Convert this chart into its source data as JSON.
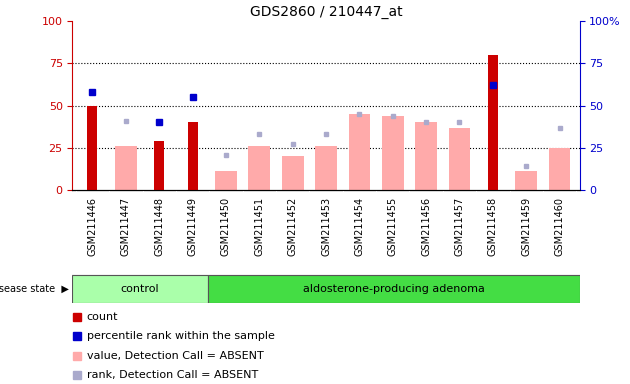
{
  "title": "GDS2860 / 210447_at",
  "samples": [
    "GSM211446",
    "GSM211447",
    "GSM211448",
    "GSM211449",
    "GSM211450",
    "GSM211451",
    "GSM211452",
    "GSM211453",
    "GSM211454",
    "GSM211455",
    "GSM211456",
    "GSM211457",
    "GSM211458",
    "GSM211459",
    "GSM211460"
  ],
  "count": [
    50,
    0,
    29,
    40,
    0,
    0,
    0,
    0,
    0,
    0,
    0,
    0,
    80,
    0,
    0
  ],
  "percentile_rank": [
    58,
    0,
    40,
    55,
    0,
    0,
    0,
    0,
    0,
    0,
    0,
    0,
    62,
    0,
    0
  ],
  "value_absent": [
    0,
    26,
    0,
    0,
    11,
    26,
    20,
    26,
    45,
    44,
    40,
    37,
    0,
    11,
    25
  ],
  "rank_absent": [
    0,
    41,
    0,
    0,
    21,
    33,
    27,
    33,
    45,
    44,
    40,
    40,
    0,
    14,
    37
  ],
  "control_count": 4,
  "adenoma_count": 11,
  "group_labels": [
    "control",
    "aldosterone-producing adenoma"
  ],
  "ylim": [
    0,
    100
  ],
  "bar_color_count": "#cc0000",
  "bar_color_value_absent": "#ffaaaa",
  "dot_color_percentile": "#0000cc",
  "dot_color_rank_absent": "#aaaacc",
  "group_color_light": "#aaffaa",
  "group_color_dark": "#44dd44",
  "background_color": "#cccccc",
  "plot_bg": "#ffffff",
  "dotted_lines": [
    25,
    50,
    75
  ],
  "legend_items": [
    {
      "label": "count",
      "color": "#cc0000"
    },
    {
      "label": "percentile rank within the sample",
      "color": "#0000cc"
    },
    {
      "label": "value, Detection Call = ABSENT",
      "color": "#ffaaaa"
    },
    {
      "label": "rank, Detection Call = ABSENT",
      "color": "#aaaacc"
    }
  ]
}
